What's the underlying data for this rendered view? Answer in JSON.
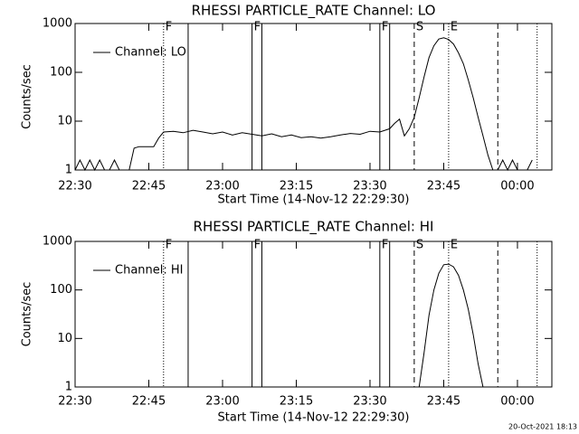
{
  "chart_data": [
    {
      "type": "line",
      "title": "RHESSI PARTICLE_RATE Channel: LO",
      "x_label": "Start Time (14-Nov-12 22:29:30)",
      "y_label": "Counts/sec",
      "log_y": true,
      "legend": "upper left",
      "xlim": [
        "22:30",
        "00:07"
      ],
      "xticks": [
        "22:30",
        "22:45",
        "23:00",
        "23:15",
        "23:30",
        "23:45",
        "00:00"
      ],
      "ylim": [
        1,
        1000
      ],
      "yticks": [
        1,
        10,
        100,
        1000
      ],
      "x": [
        "22:30",
        "22:31",
        "22:32",
        "22:33",
        "22:34",
        "22:35",
        "22:36",
        "22:37",
        "22:38",
        "22:39",
        "22:40",
        "22:41",
        "22:42",
        "22:43",
        "22:44",
        "22:45",
        "22:46",
        "22:47",
        "22:48",
        "22:50",
        "22:52",
        "22:54",
        "22:56",
        "22:58",
        "23:00",
        "23:02",
        "23:04",
        "23:06",
        "23:08",
        "23:10",
        "23:12",
        "23:14",
        "23:16",
        "23:18",
        "23:20",
        "23:22",
        "23:24",
        "23:26",
        "23:28",
        "23:30",
        "23:32",
        "23:34",
        "23:35",
        "23:36",
        "23:37",
        "23:38",
        "23:39",
        "23:40",
        "23:41",
        "23:42",
        "23:43",
        "23:44",
        "23:45",
        "23:46",
        "23:47",
        "23:48",
        "23:49",
        "23:50",
        "23:51",
        "23:52",
        "23:53",
        "23:54",
        "23:55",
        "23:56",
        "23:57",
        "23:58",
        "23:59",
        "00:00",
        "00:01",
        "00:02",
        "00:03"
      ],
      "series": [
        {
          "name": "Channel: LO",
          "color": "#000000",
          "values": [
            1,
            1.6,
            1,
            1.6,
            1,
            1.6,
            1,
            1,
            1.6,
            1,
            1,
            1,
            2.8,
            3,
            3,
            3,
            3,
            4.5,
            6,
            6.2,
            5.8,
            6.5,
            6,
            5.5,
            6,
            5.2,
            5.8,
            5.4,
            5,
            5.5,
            4.8,
            5.2,
            4.6,
            4.8,
            4.5,
            4.8,
            5.2,
            5.6,
            5.4,
            6.2,
            6,
            7,
            9,
            11,
            5,
            7,
            12,
            30,
            80,
            200,
            350,
            480,
            510,
            470,
            380,
            250,
            150,
            70,
            30,
            12,
            5,
            2,
            1,
            1,
            1.6,
            1,
            1.6,
            1,
            1,
            1,
            1.6
          ]
        }
      ],
      "markers": [
        {
          "x": "22:48",
          "label": "F",
          "style": "dotted"
        },
        {
          "x": "22:53",
          "label": null,
          "style": "solid"
        },
        {
          "x": "23:06",
          "label": "F",
          "style": "solid"
        },
        {
          "x": "23:08",
          "label": null,
          "style": "solid"
        },
        {
          "x": "23:32",
          "label": "F",
          "style": "solid"
        },
        {
          "x": "23:34",
          "label": null,
          "style": "solid"
        },
        {
          "x": "23:39",
          "label": "S",
          "style": "dashed"
        },
        {
          "x": "23:46",
          "label": "E",
          "style": "dotted"
        },
        {
          "x": "23:56",
          "label": null,
          "style": "dashed"
        },
        {
          "x": "00:04",
          "label": null,
          "style": "dotted"
        }
      ]
    },
    {
      "type": "line",
      "title": "RHESSI PARTICLE_RATE Channel: HI",
      "x_label": "Start Time (14-Nov-12 22:29:30)",
      "y_label": "Counts/sec",
      "log_y": true,
      "legend": "upper left",
      "xlim": [
        "22:30",
        "00:07"
      ],
      "xticks": [
        "22:30",
        "22:45",
        "23:00",
        "23:15",
        "23:30",
        "23:45",
        "00:00"
      ],
      "ylim": [
        1,
        1000
      ],
      "yticks": [
        1,
        10,
        100,
        1000
      ],
      "x": [
        "23:40",
        "23:41",
        "23:42",
        "23:43",
        "23:44",
        "23:45",
        "23:46",
        "23:47",
        "23:48",
        "23:49",
        "23:50",
        "23:51",
        "23:52",
        "23:53"
      ],
      "series": [
        {
          "name": "Channel: HI",
          "color": "#000000",
          "values": [
            1,
            5,
            30,
            100,
            220,
            330,
            340,
            300,
            200,
            100,
            40,
            12,
            3,
            1
          ]
        }
      ],
      "markers": [
        {
          "x": "22:48",
          "label": "F",
          "style": "dotted"
        },
        {
          "x": "22:53",
          "label": null,
          "style": "solid"
        },
        {
          "x": "23:06",
          "label": "F",
          "style": "solid"
        },
        {
          "x": "23:08",
          "label": null,
          "style": "solid"
        },
        {
          "x": "23:32",
          "label": "F",
          "style": "solid"
        },
        {
          "x": "23:34",
          "label": null,
          "style": "solid"
        },
        {
          "x": "23:39",
          "label": "S",
          "style": "dashed"
        },
        {
          "x": "23:46",
          "label": "E",
          "style": "dotted"
        },
        {
          "x": "23:56",
          "label": null,
          "style": "dashed"
        },
        {
          "x": "00:04",
          "label": null,
          "style": "dotted"
        }
      ]
    }
  ],
  "footer": "20-Oct-2021 18:13"
}
